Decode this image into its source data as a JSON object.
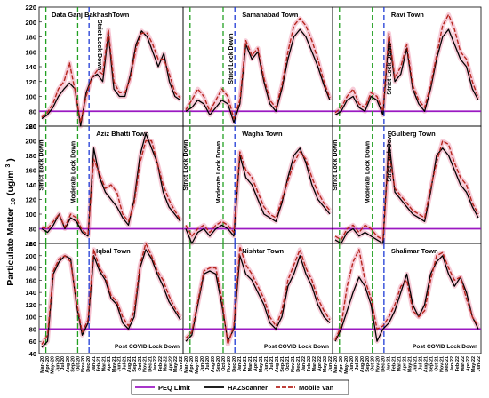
{
  "chart_data": {
    "type": "line",
    "ylabel": "Particulate Matter 10 (ug/m^3)",
    "ylabel_main": "Particulate Matter",
    "ylabel_sub": "10",
    "ylabel_unit": "(ug/m",
    "ylabel_sup": "3",
    "ylabel_close": ")",
    "x_ticks": [
      "Mar- 20",
      "Apr- 20",
      "May- 20",
      "Jun-20",
      "Jul-20",
      "Aug-20",
      "Sep-20",
      "Oct-20",
      "Nov-20",
      "Dec-20",
      "Jan-21",
      "Feb-21",
      "Mar-21",
      "Apr-21",
      "May-21",
      "Jun-21",
      "Jul-21",
      "Aug-21",
      "Sep-21",
      "Oct-21",
      "Nov-21",
      "Dec-21",
      "Jan-22",
      "Feb-22",
      "Mar-22",
      "Apr-22",
      "May-22",
      "Jun-22"
    ],
    "x_tick_visible": [
      true,
      true,
      true,
      true,
      true,
      true,
      true,
      true,
      true,
      true,
      true,
      true,
      true,
      true,
      true,
      true,
      true,
      true,
      true,
      true,
      true,
      true,
      true,
      true,
      true,
      true,
      true,
      true
    ],
    "x_tick_count": 28,
    "rows": [
      {
        "yrange": [
          60,
          220
        ],
        "ticks": [
          60,
          80,
          100,
          120,
          140,
          160,
          180,
          200,
          220
        ]
      },
      {
        "yrange": [
          60,
          220
        ],
        "ticks": [
          60,
          80,
          100,
          120,
          140,
          160,
          180,
          200,
          220
        ]
      },
      {
        "yrange": [
          40,
          220
        ],
        "ticks": [
          40,
          60,
          80,
          100,
          120,
          140,
          160,
          180,
          200,
          220
        ]
      }
    ],
    "peq_limit": 80,
    "lockdown_lines": {
      "strict": 0.8,
      "moderate": 7.0,
      "post": 9.2
    },
    "annotations": {
      "strict": "Strict Lock Down",
      "moderate": "Moderate Lock Down",
      "post": "Post COVID Lock Down"
    },
    "panels": [
      {
        "title": "Data Ganj BakhashTown",
        "row": 0,
        "col": 0,
        "series": [
          {
            "name": "HAZScanner",
            "values": [
              70,
              75,
              85,
              100,
              110,
              118,
              110,
              60,
              105,
              125,
              130,
              120,
              185,
              110,
              100,
              100,
              130,
              170,
              188,
              180,
              160,
              140,
              158,
              120,
              100,
              95
            ]
          },
          {
            "name": "Mobile Van",
            "values": [
              72,
              78,
              90,
              110,
              120,
              145,
              108,
              65,
              100,
              125,
              135,
              130,
              190,
              120,
              105,
              105,
              125,
              165,
              185,
              185,
              170,
              150,
              150,
              130,
              105,
              98
            ]
          }
        ]
      },
      {
        "title": "Samanabad Town",
        "row": 0,
        "col": 1,
        "series": [
          {
            "name": "HAZScanner",
            "values": [
              80,
              85,
              95,
              90,
              75,
              85,
              95,
              90,
              65,
              90,
              170,
              150,
              160,
              120,
              90,
              80,
              110,
              150,
              180,
              190,
              180,
              160,
              140,
              115,
              95
            ]
          },
          {
            "name": "Mobile Van",
            "values": [
              82,
              95,
              110,
              100,
              80,
              95,
              110,
              100,
              70,
              95,
              175,
              155,
              165,
              125,
              95,
              85,
              115,
              160,
              195,
              205,
              195,
              175,
              150,
              120,
              98
            ]
          }
        ]
      },
      {
        "title": "Ravi Town",
        "row": 0,
        "col": 2,
        "series": [
          {
            "name": "HAZScanner",
            "values": [
              75,
              80,
              95,
              100,
              85,
              80,
              100,
              95,
              75,
              180,
              120,
              130,
              165,
              110,
              90,
              80,
              110,
              150,
              180,
              190,
              170,
              150,
              140,
              110,
              95
            ]
          },
          {
            "name": "Mobile Van",
            "values": [
              78,
              85,
              100,
              110,
              90,
              85,
              105,
              100,
              80,
              185,
              125,
              140,
              170,
              115,
              95,
              85,
              115,
              155,
              195,
              210,
              190,
              160,
              150,
              120,
              98
            ]
          }
        ]
      },
      {
        "title": "Aziz Bhatti Town",
        "row": 1,
        "col": 0,
        "series": [
          {
            "name": "HAZScanner",
            "values": [
              80,
              75,
              85,
              100,
              80,
              95,
              90,
              75,
              70,
              190,
              150,
              130,
              120,
              110,
              95,
              85,
              120,
              180,
              210,
              190,
              170,
              130,
              110,
              100,
              90
            ]
          },
          {
            "name": "Mobile Van",
            "values": [
              82,
              80,
              90,
              100,
              82,
              100,
              95,
              78,
              72,
              175,
              155,
              135,
              140,
              130,
              100,
              90,
              115,
              170,
              200,
              200,
              170,
              140,
              120,
              105,
              92
            ]
          }
        ]
      },
      {
        "title": "Wagha Town",
        "row": 1,
        "col": 1,
        "series": [
          {
            "name": "HAZScanner",
            "values": [
              80,
              60,
              75,
              80,
              70,
              80,
              85,
              80,
              70,
              180,
              150,
              140,
              120,
              100,
              95,
              90,
              115,
              150,
              180,
              190,
              170,
              140,
              120,
              110,
              100
            ]
          },
          {
            "name": "Mobile Van",
            "values": [
              85,
              70,
              80,
              85,
              75,
              85,
              90,
              85,
              75,
              185,
              160,
              150,
              130,
              110,
              100,
              95,
              120,
              145,
              170,
              185,
              175,
              150,
              130,
              115,
              105
            ]
          }
        ]
      },
      {
        "title": "Gulberg Town",
        "row": 1,
        "col": 2,
        "series": [
          {
            "name": "HAZScanner",
            "values": [
              65,
              60,
              75,
              80,
              70,
              75,
              70,
              65,
              60,
              200,
              130,
              120,
              110,
              100,
              95,
              90,
              130,
              180,
              190,
              180,
              160,
              140,
              130,
              110,
              95
            ]
          },
          {
            "name": "Mobile Van",
            "values": [
              70,
              65,
              80,
              85,
              75,
              85,
              80,
              70,
              65,
              185,
              135,
              125,
              115,
              105,
              100,
              95,
              135,
              170,
              200,
              195,
              170,
              150,
              140,
              115,
              100
            ]
          }
        ]
      },
      {
        "title": "Iqbal Town",
        "row": 2,
        "col": 0,
        "series": [
          {
            "name": "HAZScanner",
            "values": [
              50,
              60,
              170,
              190,
              200,
              195,
              120,
              70,
              90,
              200,
              175,
              160,
              130,
              120,
              90,
              80,
              100,
              180,
              210,
              195,
              170,
              150,
              125,
              110,
              95
            ]
          },
          {
            "name": "Mobile Van",
            "values": [
              55,
              70,
              175,
              195,
              200,
              190,
              125,
              75,
              95,
              210,
              180,
              165,
              135,
              125,
              100,
              85,
              110,
              185,
              220,
              200,
              175,
              160,
              135,
              115,
              100
            ]
          }
        ]
      },
      {
        "title": "Nishtar Town",
        "row": 2,
        "col": 1,
        "series": [
          {
            "name": "HAZScanner",
            "values": [
              60,
              70,
              120,
              170,
              175,
              170,
              120,
              60,
              80,
              200,
              170,
              160,
              140,
              120,
              90,
              80,
              100,
              150,
              170,
              200,
              170,
              150,
              120,
              100,
              90
            ]
          },
          {
            "name": "Mobile Van",
            "values": [
              65,
              75,
              125,
              175,
              180,
              180,
              130,
              55,
              85,
              215,
              185,
              170,
              150,
              130,
              100,
              85,
              110,
              160,
              185,
              210,
              180,
              160,
              130,
              110,
              95
            ]
          }
        ]
      },
      {
        "title": "Shalimar Town",
        "row": 2,
        "col": 2,
        "series": [
          {
            "name": "HAZScanner",
            "values": [
              60,
              80,
              110,
              140,
              165,
              150,
              120,
              60,
              80,
              90,
              110,
              140,
              170,
              120,
              100,
              120,
              170,
              190,
              200,
              170,
              150,
              165,
              140,
              100,
              80
            ]
          },
          {
            "name": "Mobile Van",
            "values": [
              62,
              85,
              150,
              190,
              210,
              160,
              130,
              80,
              85,
              100,
              120,
              150,
              160,
              110,
              100,
              110,
              160,
              200,
              205,
              180,
              160,
              165,
              130,
              100,
              85
            ]
          }
        ]
      }
    ],
    "legend": [
      {
        "label": "PEQ Limit",
        "color": "#9b19c2",
        "style": "solid"
      },
      {
        "label": "HAZScanner",
        "color": "#000000",
        "style": "solid"
      },
      {
        "label": "Mobile Van",
        "color": "#b5261e",
        "style": "dashed"
      }
    ],
    "colors": {
      "peq": "#9b19c2",
      "haz": "#000000",
      "van": "#b5261e",
      "strict": "#22a022",
      "post": "#1f3bd6",
      "halo": "#f4b6c8"
    }
  }
}
